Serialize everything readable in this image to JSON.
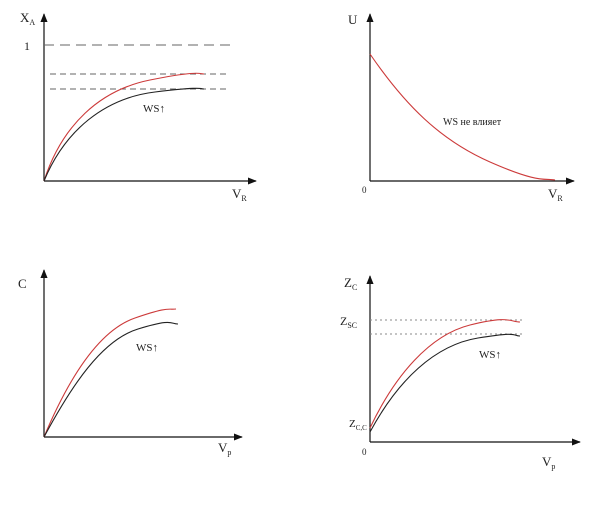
{
  "colors": {
    "axis": "#111111",
    "black_curve": "#222222",
    "red_curve": "#cc3a3a",
    "dashed": "#666666",
    "dotted": "#888888",
    "text": "#222222"
  },
  "panels": {
    "top_left": {
      "y_axis_label": "X",
      "y_axis_sub": "A",
      "x_axis_label": "V",
      "x_axis_sub": "R",
      "tick_one": "1",
      "annotation": "WS↑"
    },
    "top_right": {
      "y_axis_label": "U",
      "x_axis_label": "V",
      "x_axis_sub": "R",
      "origin": "0",
      "annotation": "WS не влияет"
    },
    "bottom_left": {
      "y_axis_label": "C",
      "x_axis_label": "V",
      "x_axis_sub": "p",
      "annotation": "WS↑"
    },
    "bottom_right": {
      "y_axis_label": "Z",
      "y_axis_sub": "C",
      "x_axis_label": "V",
      "x_axis_sub": "p",
      "origin": "0",
      "level_label": "Z",
      "level_sub": "SC",
      "start_label": "Z",
      "start_sub": "C,C",
      "annotation": "WS↑"
    }
  }
}
